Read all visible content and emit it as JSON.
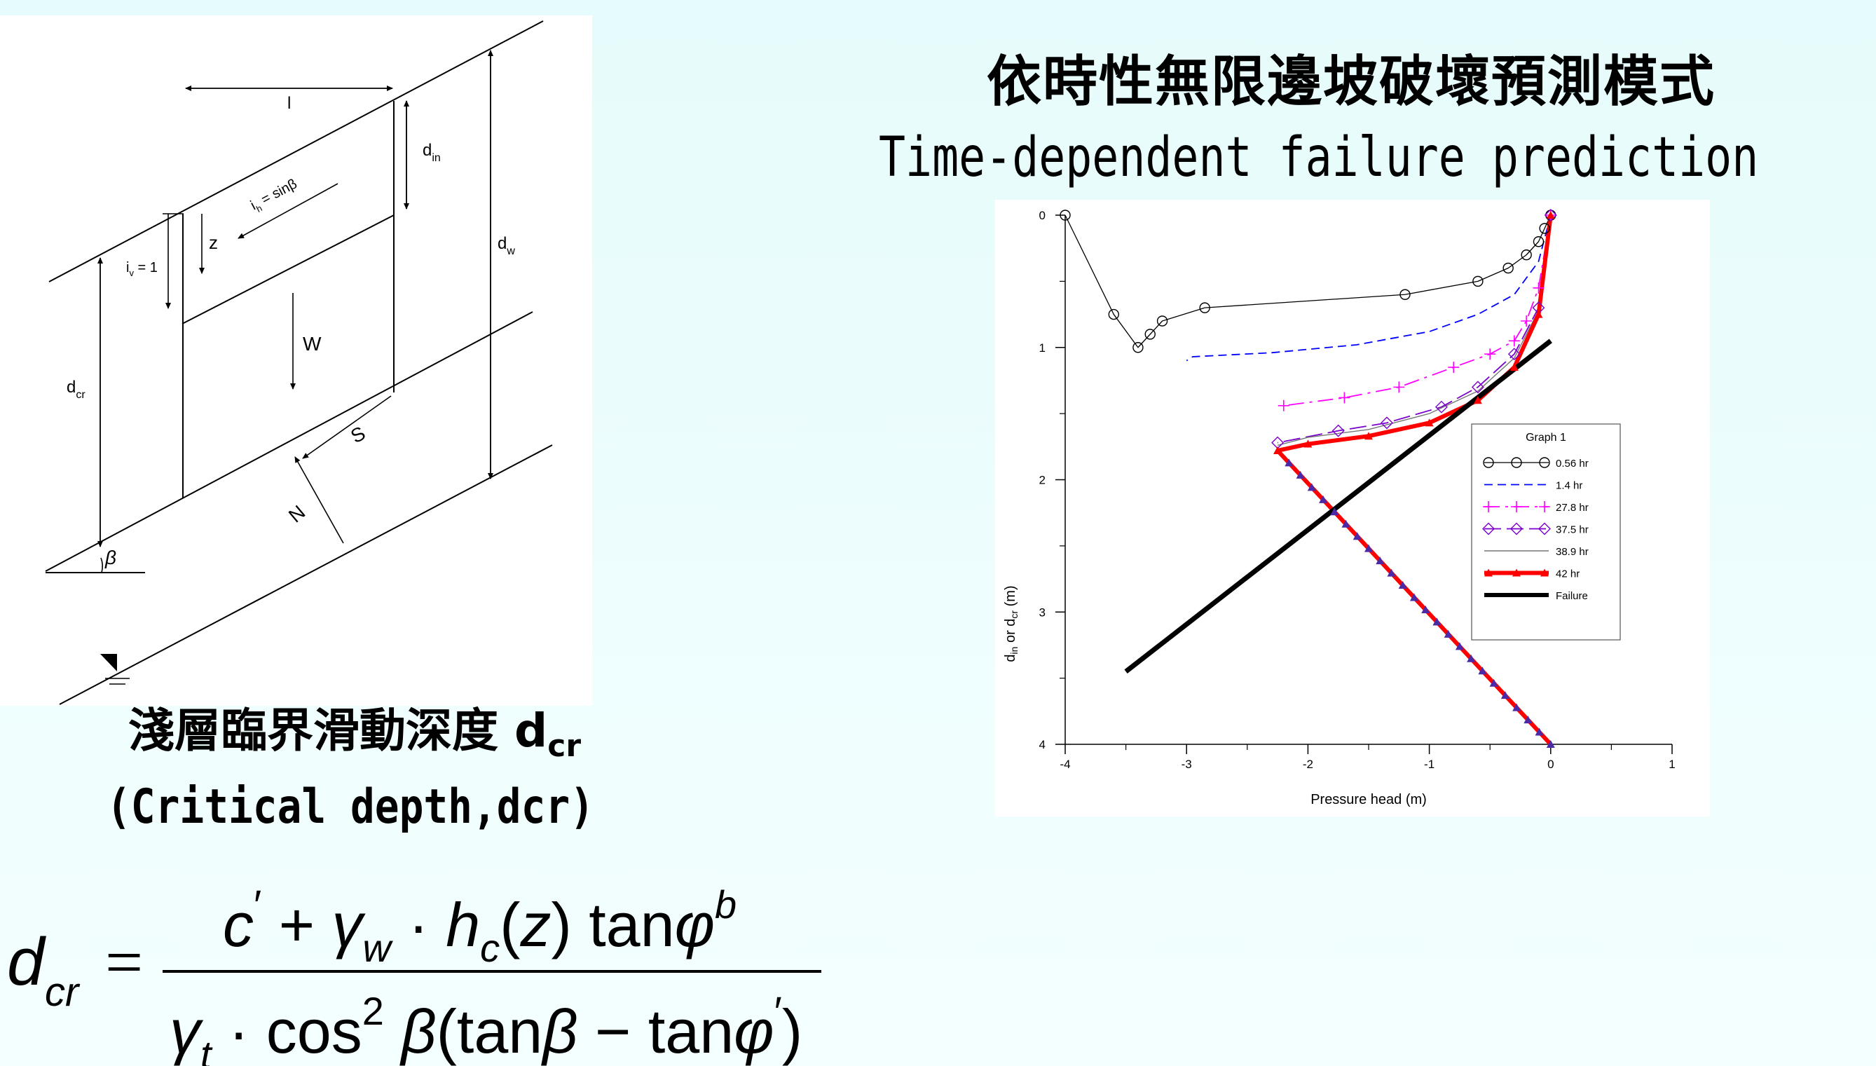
{
  "right_title": {
    "line1": "依時性無限邊坡破壞預測模式",
    "line2": "Time-dependent failure prediction"
  },
  "left_title": {
    "line1": "淺層臨界滑動深度 d",
    "line1_sub": "cr",
    "line2": "(Critical depth,dcr)"
  },
  "slope_diagram": {
    "l": "l",
    "d_in": "d",
    "d_in_sub": "in",
    "d_w": "d",
    "d_w_sub": "w",
    "d_cr": "d",
    "d_cr_sub": "cr",
    "i_h": "i",
    "i_h_sub": "h",
    "i_h_rest": " = sinβ",
    "i_v": "i",
    "i_v_sub": "v",
    "i_v_rest": " = 1",
    "z": "z",
    "W": "W",
    "S": "S",
    "N": "N",
    "beta": "β"
  },
  "formula": {
    "lhs": "d",
    "lhs_sub": "cr",
    "eq": "=",
    "numerator": "c′ + γ_w · h_c(z) tanφ^b",
    "denominator": "γ_t · cos² β(tanβ − tanφ′)"
  },
  "chart_data": {
    "type": "line",
    "xlabel": "Pressure head (m)",
    "ylabel": "din or dcr (m)",
    "xlim": [
      -4,
      1
    ],
    "ylim": [
      4,
      0
    ],
    "x_ticks": [
      "-4",
      "-3",
      "-2",
      "-1",
      "0",
      "1"
    ],
    "y_ticks": [
      "0",
      "1",
      "2",
      "3",
      "4"
    ],
    "legend": {
      "title": "Graph 1",
      "placement": "right"
    },
    "series": [
      {
        "name": "0.56 hr",
        "color": "#000000",
        "style": "thin solid with circles",
        "x": [
          0,
          -0.05,
          -0.1,
          -0.2,
          -0.35,
          -0.6,
          -1.2,
          -2.85,
          -3.2,
          -3.3,
          -3.4,
          -3.6,
          -4
        ],
        "y": [
          0,
          0.1,
          0.2,
          0.3,
          0.4,
          0.5,
          0.6,
          0.7,
          0.8,
          0.9,
          1.0,
          0.75,
          0
        ]
      },
      {
        "name": "1.4 hr",
        "color": "#0000ff",
        "style": "dashed blue",
        "x": [
          0,
          -0.1,
          -0.3,
          -0.6,
          -1.0,
          -1.6,
          -2.3,
          -2.95,
          -3.0
        ],
        "y": [
          0,
          0.35,
          0.6,
          0.75,
          0.88,
          0.98,
          1.04,
          1.07,
          1.1
        ]
      },
      {
        "name": "27.8 hr",
        "color": "#ff00ff",
        "style": "dash-dot magenta with plus",
        "x": [
          0,
          -0.1,
          -0.2,
          -0.3,
          -0.5,
          -0.8,
          -1.25,
          -1.7,
          -2.2
        ],
        "y": [
          0,
          0.55,
          0.8,
          0.95,
          1.05,
          1.15,
          1.3,
          1.38,
          1.44
        ]
      },
      {
        "name": "37.5 hr",
        "color": "#7a00cc",
        "style": "long-dash purple with diamonds",
        "x": [
          0,
          -0.1,
          -0.3,
          -0.6,
          -0.9,
          -1.35,
          -1.75,
          -2.25
        ],
        "y": [
          0,
          0.7,
          1.05,
          1.3,
          1.45,
          1.57,
          1.63,
          1.72
        ]
      },
      {
        "name": "38.9 hr",
        "color": "#777777",
        "style": "thin gray",
        "x": [
          0,
          -0.1,
          -0.3,
          -0.6,
          -1.0,
          -1.5,
          -2.0,
          -2.25
        ],
        "y": [
          0,
          0.72,
          1.08,
          1.33,
          1.5,
          1.62,
          1.68,
          1.74
        ]
      },
      {
        "name": "42 hr",
        "color": "#ff0000",
        "style": "thick red with triangles",
        "x": [
          0,
          -0.1,
          -0.3,
          -0.6,
          -1.0,
          -1.5,
          -2.0,
          -2.25
        ],
        "y": [
          0,
          0.75,
          1.15,
          1.4,
          1.57,
          1.67,
          1.73,
          1.78
        ]
      },
      {
        "name": "Failure",
        "color": "#000000",
        "style": "thick black",
        "x": [
          -3.5,
          0
        ],
        "y": [
          3.45,
          0.95
        ]
      }
    ],
    "shared_wetting_front": {
      "x": [
        -2.25,
        0
      ],
      "y": [
        1.78,
        4
      ]
    }
  }
}
